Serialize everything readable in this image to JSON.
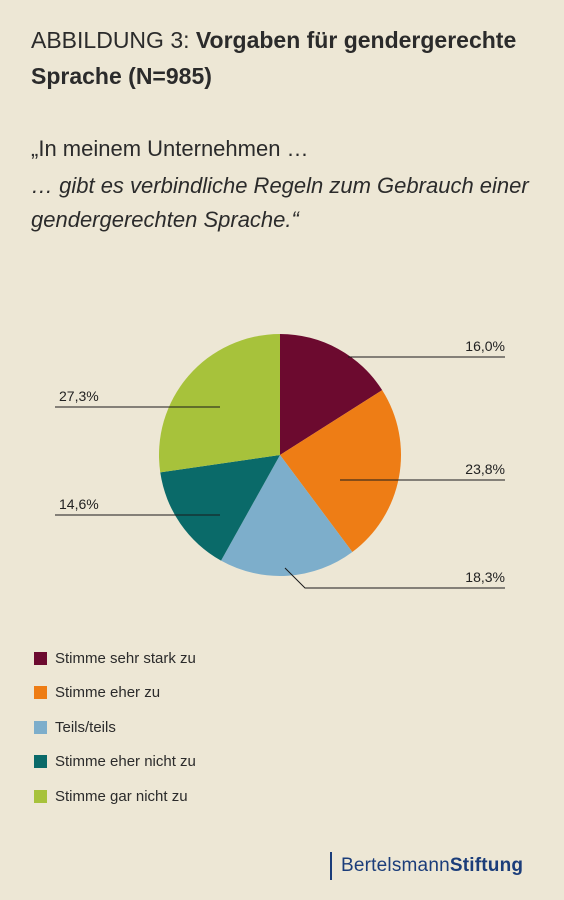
{
  "header": {
    "figure_prefix": "ABBILDUNG 3: ",
    "title": "Vorgaben für gendergerechte Sprache (N=985)"
  },
  "question": {
    "line1": "„In meinem Unternehmen …",
    "line2": "… gibt es verbindliche Regeln zum Gebrauch einer gendergerechten Sprache.“"
  },
  "chart_data": {
    "type": "pie",
    "title": "Vorgaben für gendergerechte Sprache (N=985)",
    "unit": "%",
    "categories": [
      "Stimme sehr stark zu",
      "Stimme eher zu",
      "Teils/teils",
      "Stimme eher nicht zu",
      "Stimme gar nicht zu"
    ],
    "values": [
      16.0,
      23.8,
      18.3,
      14.6,
      27.3
    ],
    "labels": [
      "16,0%",
      "23,8%",
      "18,3%",
      "14,6%",
      "27,3%"
    ],
    "colors": [
      "#6c0a2f",
      "#ee7d15",
      "#7daecb",
      "#0a6a69",
      "#a7c23b"
    ],
    "start_angle": "12 o'clock",
    "direction": "clockwise",
    "legend_position": "bottom-left"
  },
  "brand": {
    "part1": "Bertelsmann",
    "part2": "Stiftung"
  }
}
